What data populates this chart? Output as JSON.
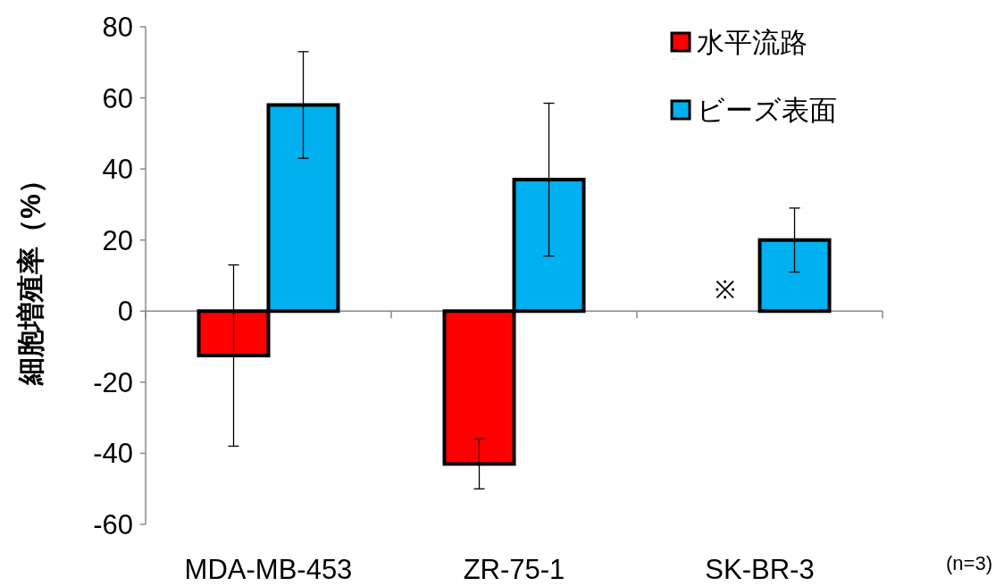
{
  "chart_data": {
    "type": "bar",
    "ylabel": "細胞増殖率（%）",
    "categories": [
      "MDA-MB-453",
      "ZR-75-1",
      "SK-BR-3"
    ],
    "series": [
      {
        "name": "水平流路",
        "color": "#ff0000",
        "values": [
          -12.5,
          -43,
          null
        ],
        "errors": [
          [
            -38,
            13
          ],
          [
            -50,
            -36
          ],
          null
        ]
      },
      {
        "name": "ビーズ表面",
        "color": "#00b0f0",
        "values": [
          58,
          37,
          20
        ],
        "errors": [
          [
            43,
            73
          ],
          [
            15.5,
            58.5
          ],
          [
            11,
            29
          ]
        ]
      }
    ],
    "ylim": [
      -60,
      80
    ],
    "yticks": [
      -60,
      -40,
      -20,
      0,
      20,
      40,
      60,
      80
    ],
    "legend": "top right",
    "annotations": [
      {
        "text": "※",
        "x": "SK-BR-3"
      },
      "(n=3)"
    ]
  }
}
